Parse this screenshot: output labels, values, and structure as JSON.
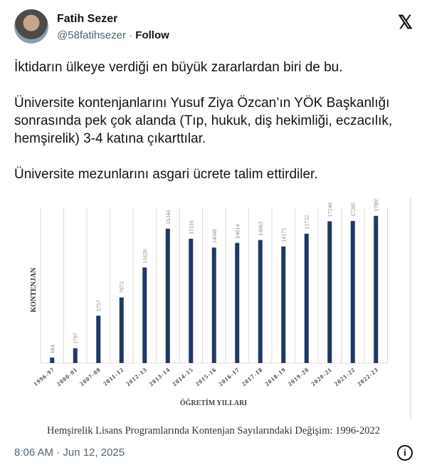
{
  "author": {
    "name": "Fatih Sezer",
    "handle": "@58fatihsezer",
    "follow": "Follow"
  },
  "tweet": {
    "paragraphs": [
      "İktidarın ülkeye verdiği en büyük zararlardan biri de bu.",
      "Üniversite kontenjanlarını Yusuf Ziya Özcan’ın YÖK Başkanlığı sonrasında pek çok alanda (Tıp, hukuk, diş hekimliği, eczacılık, hemşirelik) 3-4 katına çıkarttılar.",
      "Üniversite mezunlarını asgari ücrete talim ettirdiler."
    ],
    "timestamp": "8:06 AM · Jun 12, 2025"
  },
  "chart_data": {
    "type": "bar",
    "title": "Hemşirelik Lisans Programlarında Kontenjan Sayılarındaki Değişim: 1996-2022",
    "xlabel": "ÖĞRETİM YILLARI",
    "ylabel": "KONTENJAN",
    "categories": [
      "1996-97",
      "2000-01",
      "2007-08",
      "2011-12",
      "2012-13",
      "2013-14",
      "2014-15",
      "2015-16",
      "2016-17",
      "2017-18",
      "2018-19",
      "2019-20",
      "2020-21",
      "2021-22",
      "2022-23"
    ],
    "values": [
      664,
      1797,
      5757,
      7973,
      11620,
      16344,
      15116,
      14048,
      14614,
      14963,
      14175,
      15732,
      17240,
      17285,
      17895
    ],
    "ylim": [
      0,
      19000
    ],
    "grid": "vertical",
    "bar_color": "#1f3864"
  }
}
